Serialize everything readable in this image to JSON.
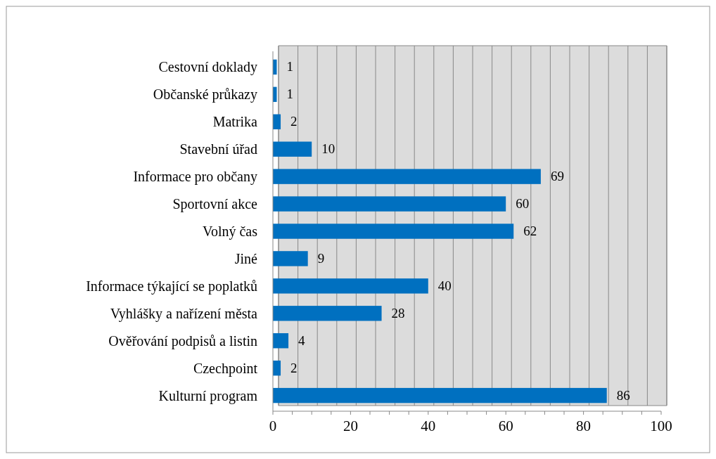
{
  "chart_data": {
    "type": "bar",
    "orientation": "horizontal",
    "categories": [
      "Cestovní doklady",
      "Občanské průkazy",
      "Matrika",
      "Stavební úřad",
      "Informace pro občany",
      "Sportovní akce",
      "Volný čas",
      "Jiné",
      "Informace týkající se poplatků",
      "Vyhlášky a nařízení města",
      "Ověřování podpisů a listin",
      "Czechpoint",
      "Kulturní program"
    ],
    "values": [
      1,
      1,
      2,
      10,
      69,
      60,
      62,
      9,
      40,
      28,
      4,
      2,
      86
    ],
    "color": "#0070c0",
    "xlim": [
      0,
      100
    ],
    "xticks": [
      0,
      {
        "value": 5,
        "label": null
      },
      {
        "value": 10,
        "label": null
      },
      {
        "value": 15,
        "label": null
      },
      20,
      {
        "value": 25,
        "label": null
      },
      {
        "value": 30,
        "label": null
      },
      {
        "value": 35,
        "label": null
      },
      40,
      {
        "value": 45,
        "label": null
      },
      {
        "value": 50,
        "label": null
      },
      {
        "value": 55,
        "label": null
      },
      60,
      {
        "value": 65,
        "label": null
      },
      {
        "value": 70,
        "label": null
      },
      {
        "value": 75,
        "label": null
      },
      80,
      {
        "value": 85,
        "label": null
      },
      {
        "value": 90,
        "label": null
      },
      {
        "value": 95,
        "label": null
      },
      100
    ],
    "grid": "x",
    "data_labels": true
  }
}
